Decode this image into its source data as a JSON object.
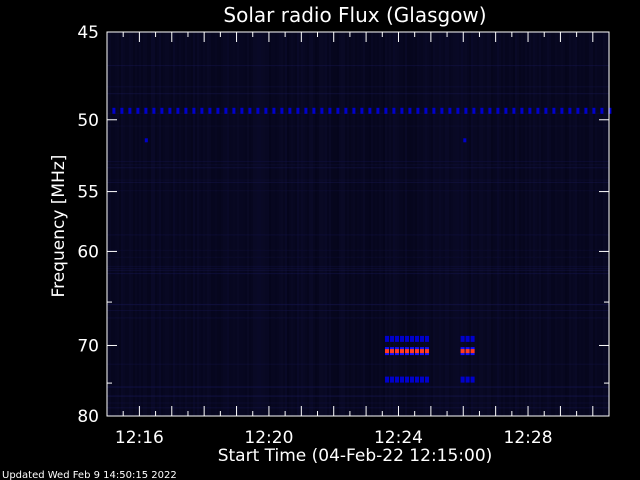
{
  "chart_data": {
    "type": "heatmap",
    "title": "Solar radio Flux (Glasgow)",
    "xlabel": "Start Time (04-Feb-22 12:15:00)",
    "ylabel": "Frequency [MHz]",
    "xlim_minutes": [
      "12:15:00",
      "12:30:30"
    ],
    "ylim": [
      45,
      80
    ],
    "y_scale": "reciprocal",
    "x_ticks": [
      "12:16",
      "12:20",
      "12:24",
      "12:28"
    ],
    "y_ticks": [
      45,
      50,
      55,
      60,
      70,
      80
    ],
    "grid": false,
    "colors": {
      "background": "#000000",
      "plot_bg": "#05051a",
      "axes": "#ffffff",
      "band": "#0000cc",
      "burst_core": "#ff3a20",
      "burst_edge": "#1010ff"
    },
    "features": [
      {
        "name": "interference-line",
        "freq_mhz": 49.5,
        "from": "12:15:10",
        "to": "12:30:30"
      },
      {
        "name": "burst-upper",
        "freq_mhz": 69.2,
        "from": "12:23:35",
        "to": "12:24:50"
      },
      {
        "name": "burst-core",
        "freq_mhz": 70.7,
        "from": "12:23:35",
        "to": "12:24:50"
      },
      {
        "name": "burst-lower",
        "freq_mhz": 74.5,
        "from": "12:23:35",
        "to": "12:24:50"
      },
      {
        "name": "burst2-upper",
        "freq_mhz": 69.2,
        "from": "12:25:55",
        "to": "12:26:20"
      },
      {
        "name": "burst2-core",
        "freq_mhz": 70.7,
        "from": "12:25:55",
        "to": "12:26:20"
      },
      {
        "name": "burst2-lower",
        "freq_mhz": 74.5,
        "from": "12:25:55",
        "to": "12:26:20"
      }
    ]
  },
  "footer": {
    "updated": "Updated Wed Feb  9 14:50:15 2022"
  }
}
